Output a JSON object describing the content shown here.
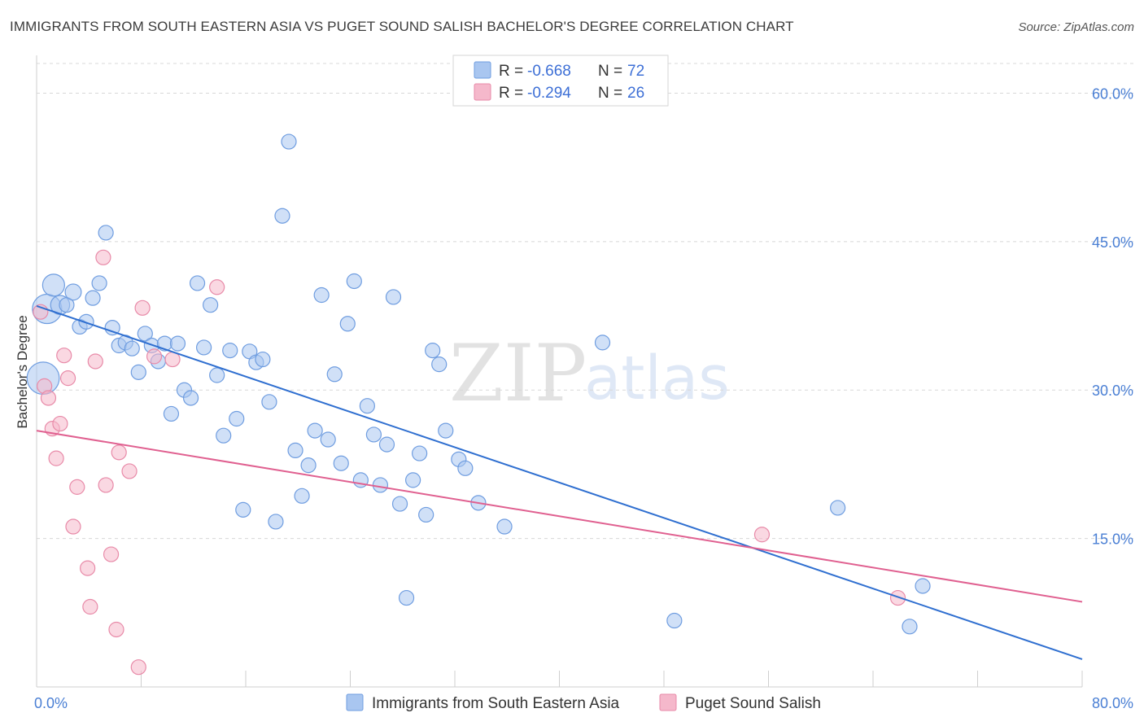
{
  "header": {
    "title": "IMMIGRANTS FROM SOUTH EASTERN ASIA VS PUGET SOUND SALISH BACHELOR'S DEGREE CORRELATION CHART",
    "source": "Source: ZipAtlas.com"
  },
  "watermark": {
    "zip": "ZIP",
    "atlas": "atlas"
  },
  "legend": {
    "r_label": "R =",
    "n_label": "N =",
    "entries": [
      {
        "r": "-0.668",
        "n": "72",
        "color": "#a9c6f0"
      },
      {
        "r": "-0.294",
        "n": "26",
        "color": "#f5b8cb"
      }
    ]
  },
  "colors": {
    "series1_fill": "#a9c6f0",
    "series1_stroke": "#6f9de0",
    "series1_line": "#2f6fd0",
    "series2_fill": "#f5b8cb",
    "series2_stroke": "#e88aa8",
    "series2_line": "#e06090",
    "grid": "#d8d8d8",
    "tick_label": "#4a7fd4"
  },
  "chart_data": {
    "type": "scatter",
    "xlabel": "",
    "ylabel": "Bachelor's Degree",
    "xlim": [
      0,
      80
    ],
    "ylim": [
      0,
      63
    ],
    "x_tick_labels": [
      "0.0%",
      "80.0%"
    ],
    "y_ticks": [
      15,
      30,
      45,
      60
    ],
    "y_tick_labels": [
      "15.0%",
      "30.0%",
      "45.0%",
      "60.0%"
    ],
    "grid": true,
    "legend_position": "bottom",
    "series": [
      {
        "name": "Immigrants from South Eastern Asia",
        "trend": {
          "x": [
            0,
            80
          ],
          "y": [
            38.5,
            2.8
          ]
        },
        "points": [
          {
            "x": 0.5,
            "y": 31.2,
            "s": 2.2
          },
          {
            "x": 0.8,
            "y": 38.2,
            "s": 2.0
          },
          {
            "x": 1.3,
            "y": 40.6,
            "s": 1.5
          },
          {
            "x": 1.8,
            "y": 38.6,
            "s": 1.3
          },
          {
            "x": 2.3,
            "y": 38.6,
            "s": 1.0
          },
          {
            "x": 2.8,
            "y": 39.9,
            "s": 1.1
          },
          {
            "x": 3.3,
            "y": 36.4,
            "s": 1.0
          },
          {
            "x": 3.8,
            "y": 36.9,
            "s": 1.0
          },
          {
            "x": 4.3,
            "y": 39.3,
            "s": 1.0
          },
          {
            "x": 4.8,
            "y": 40.8,
            "s": 1.0
          },
          {
            "x": 5.3,
            "y": 45.9,
            "s": 1.0
          },
          {
            "x": 5.8,
            "y": 36.3,
            "s": 1.0
          },
          {
            "x": 6.3,
            "y": 34.5,
            "s": 1.0
          },
          {
            "x": 6.8,
            "y": 34.8,
            "s": 1.0
          },
          {
            "x": 7.3,
            "y": 34.2,
            "s": 1.0
          },
          {
            "x": 7.8,
            "y": 31.8,
            "s": 1.0
          },
          {
            "x": 8.3,
            "y": 35.7,
            "s": 1.0
          },
          {
            "x": 8.8,
            "y": 34.5,
            "s": 1.0
          },
          {
            "x": 9.3,
            "y": 32.9,
            "s": 1.0
          },
          {
            "x": 9.8,
            "y": 34.7,
            "s": 1.0
          },
          {
            "x": 10.3,
            "y": 27.6,
            "s": 1.0
          },
          {
            "x": 10.8,
            "y": 34.7,
            "s": 1.0
          },
          {
            "x": 11.3,
            "y": 30.0,
            "s": 1.0
          },
          {
            "x": 11.8,
            "y": 29.2,
            "s": 1.0
          },
          {
            "x": 12.3,
            "y": 40.8,
            "s": 1.0
          },
          {
            "x": 12.8,
            "y": 34.3,
            "s": 1.0
          },
          {
            "x": 13.3,
            "y": 38.6,
            "s": 1.0
          },
          {
            "x": 13.8,
            "y": 31.5,
            "s": 1.0
          },
          {
            "x": 14.3,
            "y": 25.4,
            "s": 1.0
          },
          {
            "x": 14.8,
            "y": 34.0,
            "s": 1.0
          },
          {
            "x": 15.3,
            "y": 27.1,
            "s": 1.0
          },
          {
            "x": 15.8,
            "y": 17.9,
            "s": 1.0
          },
          {
            "x": 16.3,
            "y": 33.9,
            "s": 1.0
          },
          {
            "x": 16.8,
            "y": 32.8,
            "s": 1.0
          },
          {
            "x": 17.3,
            "y": 33.1,
            "s": 1.0
          },
          {
            "x": 17.8,
            "y": 28.8,
            "s": 1.0
          },
          {
            "x": 18.3,
            "y": 16.7,
            "s": 1.0
          },
          {
            "x": 18.8,
            "y": 47.6,
            "s": 1.0
          },
          {
            "x": 19.3,
            "y": 55.1,
            "s": 1.0
          },
          {
            "x": 19.8,
            "y": 23.9,
            "s": 1.0
          },
          {
            "x": 20.3,
            "y": 19.3,
            "s": 1.0
          },
          {
            "x": 20.8,
            "y": 22.4,
            "s": 1.0
          },
          {
            "x": 21.3,
            "y": 25.9,
            "s": 1.0
          },
          {
            "x": 21.8,
            "y": 39.6,
            "s": 1.0
          },
          {
            "x": 22.3,
            "y": 25.0,
            "s": 1.0
          },
          {
            "x": 22.8,
            "y": 31.6,
            "s": 1.0
          },
          {
            "x": 23.3,
            "y": 22.6,
            "s": 1.0
          },
          {
            "x": 23.8,
            "y": 36.7,
            "s": 1.0
          },
          {
            "x": 24.3,
            "y": 41.0,
            "s": 1.0
          },
          {
            "x": 24.8,
            "y": 20.9,
            "s": 1.0
          },
          {
            "x": 25.3,
            "y": 28.4,
            "s": 1.0
          },
          {
            "x": 25.8,
            "y": 25.5,
            "s": 1.0
          },
          {
            "x": 26.3,
            "y": 20.4,
            "s": 1.0
          },
          {
            "x": 26.8,
            "y": 24.5,
            "s": 1.0
          },
          {
            "x": 27.3,
            "y": 39.4,
            "s": 1.0
          },
          {
            "x": 27.8,
            "y": 18.5,
            "s": 1.0
          },
          {
            "x": 28.3,
            "y": 9.0,
            "s": 1.0
          },
          {
            "x": 28.8,
            "y": 20.9,
            "s": 1.0
          },
          {
            "x": 29.3,
            "y": 23.6,
            "s": 1.0
          },
          {
            "x": 29.8,
            "y": 17.4,
            "s": 1.0
          },
          {
            "x": 30.3,
            "y": 34.0,
            "s": 1.0
          },
          {
            "x": 30.8,
            "y": 32.6,
            "s": 1.0
          },
          {
            "x": 31.3,
            "y": 25.9,
            "s": 1.0
          },
          {
            "x": 32.3,
            "y": 23.0,
            "s": 1.0
          },
          {
            "x": 32.8,
            "y": 22.1,
            "s": 1.0
          },
          {
            "x": 33.8,
            "y": 18.6,
            "s": 1.0
          },
          {
            "x": 35.8,
            "y": 16.2,
            "s": 1.0
          },
          {
            "x": 43.3,
            "y": 34.8,
            "s": 1.0
          },
          {
            "x": 48.8,
            "y": 6.7,
            "s": 1.0
          },
          {
            "x": 61.3,
            "y": 18.1,
            "s": 1.0
          },
          {
            "x": 66.8,
            "y": 6.1,
            "s": 1.0
          },
          {
            "x": 67.8,
            "y": 10.2,
            "s": 1.0
          }
        ]
      },
      {
        "name": "Puget Sound Salish",
        "trend": {
          "x": [
            0,
            80
          ],
          "y": [
            25.9,
            8.6
          ]
        },
        "points": [
          {
            "x": 0.3,
            "y": 37.9,
            "s": 1.0
          },
          {
            "x": 0.6,
            "y": 30.4,
            "s": 1.0
          },
          {
            "x": 0.9,
            "y": 29.2,
            "s": 1.0
          },
          {
            "x": 1.2,
            "y": 26.1,
            "s": 1.0
          },
          {
            "x": 1.5,
            "y": 23.1,
            "s": 1.0
          },
          {
            "x": 1.8,
            "y": 26.6,
            "s": 1.0
          },
          {
            "x": 2.1,
            "y": 33.5,
            "s": 1.0
          },
          {
            "x": 2.4,
            "y": 31.2,
            "s": 1.0
          },
          {
            "x": 2.8,
            "y": 16.2,
            "s": 1.0
          },
          {
            "x": 3.1,
            "y": 20.2,
            "s": 1.0
          },
          {
            "x": 3.9,
            "y": 12.0,
            "s": 1.0
          },
          {
            "x": 4.1,
            "y": 8.1,
            "s": 1.0
          },
          {
            "x": 4.5,
            "y": 32.9,
            "s": 1.0
          },
          {
            "x": 5.1,
            "y": 43.4,
            "s": 1.0
          },
          {
            "x": 5.3,
            "y": 20.4,
            "s": 1.0
          },
          {
            "x": 5.7,
            "y": 13.4,
            "s": 1.0
          },
          {
            "x": 6.1,
            "y": 5.8,
            "s": 1.0
          },
          {
            "x": 6.3,
            "y": 23.7,
            "s": 1.0
          },
          {
            "x": 7.1,
            "y": 21.8,
            "s": 1.0
          },
          {
            "x": 7.8,
            "y": 2.0,
            "s": 1.0
          },
          {
            "x": 8.1,
            "y": 38.3,
            "s": 1.0
          },
          {
            "x": 9.0,
            "y": 33.4,
            "s": 1.0
          },
          {
            "x": 10.4,
            "y": 33.1,
            "s": 1.0
          },
          {
            "x": 13.8,
            "y": 40.4,
            "s": 1.0
          },
          {
            "x": 55.5,
            "y": 15.4,
            "s": 1.0
          },
          {
            "x": 65.9,
            "y": 9.0,
            "s": 1.0
          }
        ]
      }
    ]
  }
}
